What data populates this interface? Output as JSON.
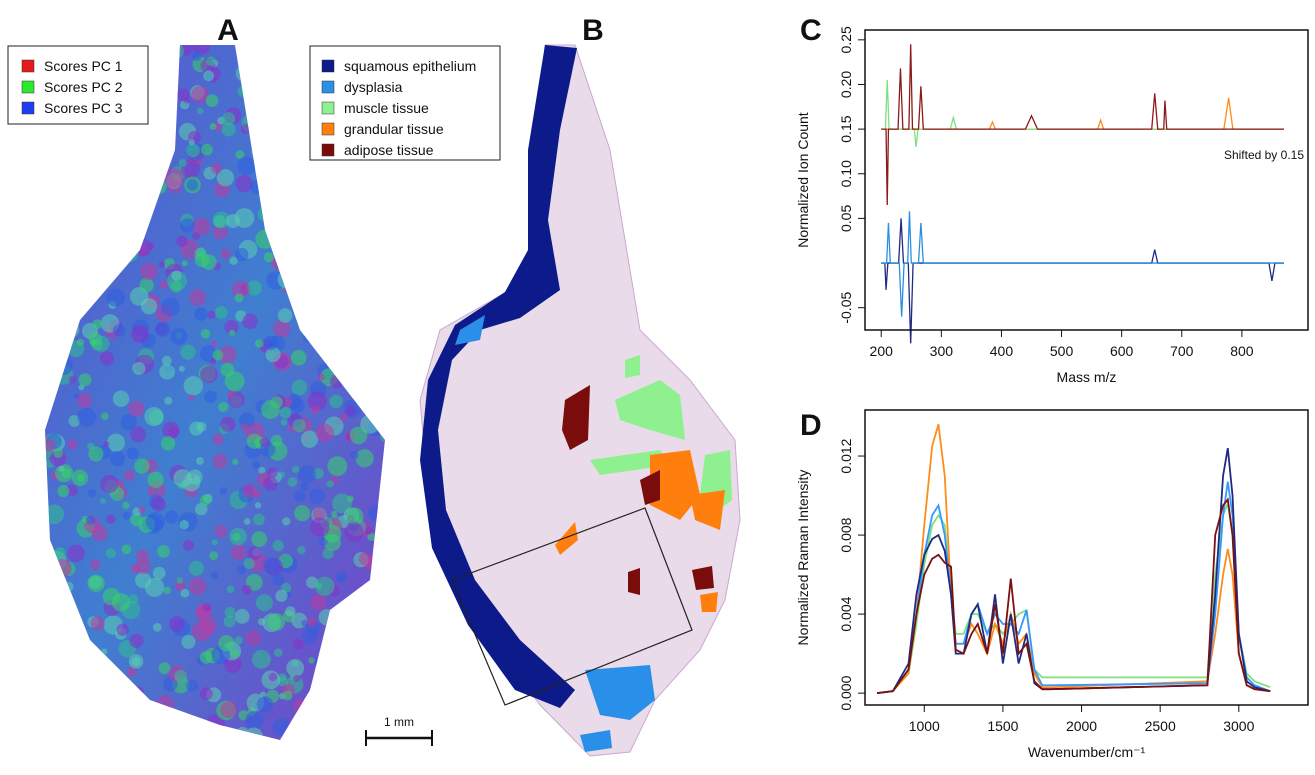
{
  "panels": {
    "A": {
      "label": "A",
      "legend": [
        {
          "label": "Scores PC 1",
          "color": "#e41a1c"
        },
        {
          "label": "Scores PC 2",
          "color": "#2ee82e"
        },
        {
          "label": "Scores PC 3",
          "color": "#1f3df0"
        }
      ]
    },
    "B": {
      "label": "B",
      "legend": [
        {
          "label": "squamous epithelium",
          "color": "#0d1a8a"
        },
        {
          "label": "dysplasia",
          "color": "#2a8fe8"
        },
        {
          "label": "muscle tissue",
          "color": "#8ef08e"
        },
        {
          "label": "grandular tissue",
          "color": "#ff7f0e"
        },
        {
          "label": "adipose tissue",
          "color": "#7a0c0c"
        }
      ]
    },
    "scale_bar": "1 mm"
  },
  "chart_data": [
    {
      "type": "line",
      "panel_label": "C",
      "xlabel": "Mass m/z",
      "ylabel": "Normalized Ion Count",
      "annotation": "Shifted by 0.15",
      "xlim": [
        173,
        910
      ],
      "xticks": [
        200,
        300,
        400,
        500,
        600,
        700,
        800
      ],
      "ylim": [
        -0.075,
        0.261
      ],
      "yticks": [
        {
          "value": -0.05,
          "label": "-0.05"
        },
        0.05,
        {
          "value": 0.1,
          "label": "0.10"
        },
        0.15,
        {
          "value": 0.2,
          "label": "0.20"
        },
        0.25
      ],
      "series": [
        {
          "color": "#ff8c1a",
          "x": [
            200,
            380,
            385,
            390,
            560,
            565,
            570,
            770,
            778,
            785,
            870
          ],
          "values": [
            0.15,
            0.15,
            0.158,
            0.15,
            0.15,
            0.16,
            0.15,
            0.15,
            0.185,
            0.15,
            0.15
          ]
        },
        {
          "color": "#7fe07f",
          "x": [
            200,
            207,
            210,
            213,
            255,
            258,
            261,
            315,
            320,
            325,
            870
          ],
          "values": [
            0.15,
            0.15,
            0.205,
            0.15,
            0.15,
            0.13,
            0.15,
            0.15,
            0.163,
            0.15,
            0.15
          ]
        },
        {
          "color": "#8b1a1a",
          "x": [
            200,
            208,
            210,
            212,
            228,
            232,
            236,
            246,
            249,
            252,
            262,
            266,
            270,
            440,
            450,
            460,
            650,
            655,
            660,
            670,
            672,
            675,
            870
          ],
          "values": [
            0.15,
            0.15,
            0.065,
            0.15,
            0.15,
            0.218,
            0.15,
            0.15,
            0.245,
            0.15,
            0.15,
            0.198,
            0.15,
            0.15,
            0.165,
            0.15,
            0.15,
            0.19,
            0.15,
            0.15,
            0.182,
            0.15,
            0.15
          ]
        },
        {
          "color": "#1f2a80",
          "x": [
            200,
            206,
            208,
            211,
            229,
            233,
            237,
            245,
            249,
            253,
            650,
            655,
            660,
            845,
            850,
            855,
            870
          ],
          "values": [
            0,
            0,
            -0.03,
            0,
            0,
            0.05,
            0,
            0,
            -0.09,
            0,
            0,
            0.015,
            0,
            0,
            -0.02,
            0,
            0
          ]
        },
        {
          "color": "#2b8fe0",
          "x": [
            200,
            209,
            212,
            215,
            230,
            234,
            238,
            244,
            247,
            250,
            262,
            266,
            270,
            870
          ],
          "values": [
            0,
            0,
            0.045,
            0,
            0,
            -0.06,
            0,
            0,
            0.058,
            0,
            0,
            0.045,
            0,
            0
          ]
        }
      ]
    },
    {
      "type": "line",
      "panel_label": "D",
      "xlabel": "Wavenumber/cm⁻¹",
      "ylabel": "Normalized Raman Intensity",
      "xlim": [
        623,
        3440
      ],
      "xticks": [
        1000,
        1500,
        2000,
        2500,
        3000
      ],
      "ylim": [
        -0.0006,
        0.01433
      ],
      "yticks": [
        {
          "value": 0,
          "label": "0.000"
        },
        {
          "value": 0.004,
          "label": "0.004"
        },
        {
          "value": 0.008,
          "label": "0.008"
        },
        {
          "value": 0.012,
          "label": "0.012"
        }
      ],
      "x": [
        700,
        800,
        900,
        950,
        1000,
        1050,
        1090,
        1130,
        1170,
        1200,
        1250,
        1300,
        1340,
        1400,
        1450,
        1500,
        1550,
        1600,
        1650,
        1700,
        1750,
        1800,
        2800,
        2850,
        2900,
        2930,
        2960,
        3000,
        3050,
        3100,
        3200
      ],
      "series": [
        {
          "color": "#7fe07f",
          "values": [
            0,
            0.0001,
            0.001,
            0.0035,
            0.0065,
            0.0085,
            0.009,
            0.0085,
            0.005,
            0.003,
            0.003,
            0.004,
            0.004,
            0.003,
            0.0035,
            0.003,
            0.0035,
            0.004,
            0.0042,
            0.0012,
            0.0008,
            0.0008,
            0.0008,
            0.006,
            0.009,
            0.0096,
            0.008,
            0.003,
            0.001,
            0.0006,
            0.0003
          ]
        },
        {
          "color": "#ff8c1a",
          "values": [
            0,
            0.0001,
            0.001,
            0.004,
            0.0085,
            0.0125,
            0.0136,
            0.011,
            0.005,
            0.0025,
            0.0025,
            0.0035,
            0.003,
            0.002,
            0.0035,
            0.0025,
            0.004,
            0.0025,
            0.003,
            0.001,
            0.0003,
            0.0003,
            0.0006,
            0.003,
            0.006,
            0.0073,
            0.006,
            0.002,
            0.0006,
            0.0003,
            0.0001
          ]
        },
        {
          "color": "#3399ff",
          "values": [
            0,
            0.0001,
            0.0012,
            0.004,
            0.007,
            0.009,
            0.0095,
            0.008,
            0.005,
            0.0025,
            0.0025,
            0.004,
            0.0045,
            0.003,
            0.004,
            0.0035,
            0.0035,
            0.003,
            0.0042,
            0.0012,
            0.0004,
            0.0004,
            0.0005,
            0.004,
            0.009,
            0.0107,
            0.009,
            0.003,
            0.0008,
            0.0004,
            0.0001
          ]
        },
        {
          "color": "#1f2a80",
          "values": [
            0,
            0.0001,
            0.0015,
            0.005,
            0.007,
            0.0078,
            0.008,
            0.0072,
            0.005,
            0.002,
            0.002,
            0.004,
            0.0045,
            0.002,
            0.005,
            0.0015,
            0.004,
            0.0015,
            0.003,
            0.0005,
            0.0002,
            0.0002,
            0.0004,
            0.005,
            0.011,
            0.0124,
            0.01,
            0.003,
            0.0006,
            0.0003,
            0.0001
          ]
        },
        {
          "color": "#7a1010",
          "values": [
            0,
            0.0001,
            0.0012,
            0.004,
            0.006,
            0.0068,
            0.007,
            0.0066,
            0.0064,
            0.0022,
            0.002,
            0.003,
            0.0035,
            0.002,
            0.0045,
            0.002,
            0.0058,
            0.002,
            0.0025,
            0.0006,
            0.0002,
            0.0002,
            0.0004,
            0.008,
            0.0095,
            0.0098,
            0.008,
            0.002,
            0.0004,
            0.0002,
            0.0001
          ]
        }
      ]
    }
  ]
}
